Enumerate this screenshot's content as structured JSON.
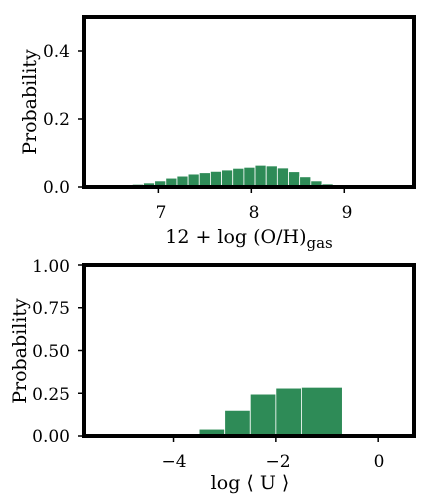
{
  "bar_color": "#2e8b57",
  "chart_data": [
    {
      "type": "bar",
      "title": "",
      "xlabel_main": "12 + log (O/H)",
      "xlabel_sub": "gas",
      "ylabel": "Probability",
      "xlim": [
        6.2,
        9.75
      ],
      "ylim": [
        0.0,
        0.5
      ],
      "xticks": [
        7,
        8,
        9
      ],
      "xtick_labels": [
        "7",
        "8",
        "9"
      ],
      "yticks": [
        0.0,
        0.2,
        0.4
      ],
      "ytick_labels": [
        "0.0",
        "0.2",
        "0.4"
      ],
      "grid": false,
      "bins": [
        {
          "x0": 6.6,
          "x1": 6.72,
          "value": 0.004
        },
        {
          "x0": 6.72,
          "x1": 6.84,
          "value": 0.008
        },
        {
          "x0": 6.84,
          "x1": 6.96,
          "value": 0.012
        },
        {
          "x0": 6.96,
          "x1": 7.08,
          "value": 0.018
        },
        {
          "x0": 7.08,
          "x1": 7.2,
          "value": 0.026
        },
        {
          "x0": 7.2,
          "x1": 7.32,
          "value": 0.032
        },
        {
          "x0": 7.32,
          "x1": 7.44,
          "value": 0.038
        },
        {
          "x0": 7.44,
          "x1": 7.56,
          "value": 0.042
        },
        {
          "x0": 7.56,
          "x1": 7.68,
          "value": 0.046
        },
        {
          "x0": 7.68,
          "x1": 7.8,
          "value": 0.05
        },
        {
          "x0": 7.8,
          "x1": 7.92,
          "value": 0.055
        },
        {
          "x0": 7.92,
          "x1": 8.04,
          "value": 0.058
        },
        {
          "x0": 8.04,
          "x1": 8.16,
          "value": 0.064
        },
        {
          "x0": 8.16,
          "x1": 8.28,
          "value": 0.062
        },
        {
          "x0": 8.28,
          "x1": 8.4,
          "value": 0.056
        },
        {
          "x0": 8.4,
          "x1": 8.52,
          "value": 0.045
        },
        {
          "x0": 8.52,
          "x1": 8.64,
          "value": 0.03
        },
        {
          "x0": 8.64,
          "x1": 8.76,
          "value": 0.018
        },
        {
          "x0": 8.76,
          "x1": 8.88,
          "value": 0.009
        },
        {
          "x0": 8.88,
          "x1": 9.0,
          "value": 0.004
        }
      ]
    },
    {
      "type": "bar",
      "title": "",
      "xlabel_main": "log ⟨ U ⟩",
      "ylabel": "Probability",
      "xlim": [
        -5.75,
        0.7
      ],
      "ylim": [
        0.0,
        1.0
      ],
      "xticks": [
        -4,
        -2,
        0
      ],
      "xtick_labels": [
        "−4",
        "−2",
        "0"
      ],
      "yticks": [
        0.0,
        0.25,
        0.5,
        0.75,
        1.0
      ],
      "ytick_labels": [
        "0.00",
        "0.25",
        "0.50",
        "0.75",
        "1.00"
      ],
      "grid": false,
      "bins": [
        {
          "x0": -3.5,
          "x1": -3.0,
          "value": 0.04
        },
        {
          "x0": -3.0,
          "x1": -2.5,
          "value": 0.15
        },
        {
          "x0": -2.5,
          "x1": -2.0,
          "value": 0.245
        },
        {
          "x0": -2.0,
          "x1": -1.5,
          "value": 0.28
        },
        {
          "x0": -1.5,
          "x1": -0.7,
          "value": 0.285
        }
      ]
    }
  ]
}
